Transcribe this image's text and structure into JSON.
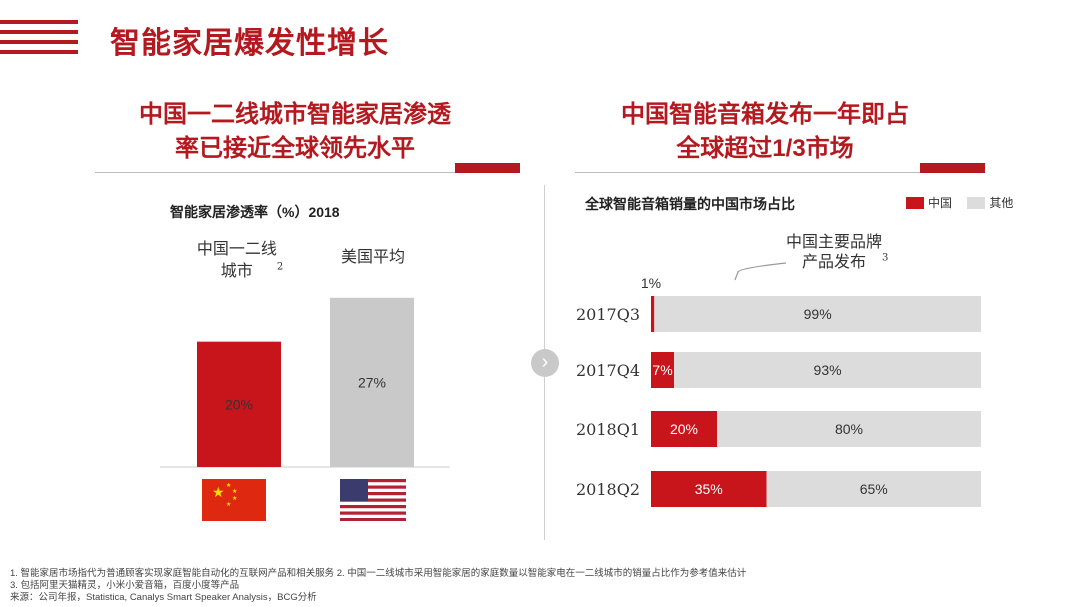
{
  "page": {
    "title": "智能家居爆发性增长"
  },
  "left_panel": {
    "heading_line1": "中国一二线城市智能家居渗透",
    "heading_line2": "率已接近全球领先水平",
    "flags": [
      {
        "name": "china-flag",
        "country": "中国"
      },
      {
        "name": "usa-flag",
        "country": "美国"
      }
    ]
  },
  "right_panel": {
    "heading_line1": "中国智能音箱发布一年即占",
    "heading_line2": "全球超过1/3市场",
    "annotation": "中国主要品牌产品发布",
    "annotation_sup": "3",
    "navigation_icon": "chevron-right-icon"
  },
  "chart_data": [
    {
      "type": "bar",
      "title": "智能家居渗透率（%）2018",
      "categories": [
        "中国一二线城市",
        "美国平均"
      ],
      "category_superscripts": [
        "2",
        ""
      ],
      "values": [
        20,
        27
      ],
      "value_labels": [
        "20%",
        "27%"
      ],
      "colors": [
        "#c8151b",
        "#c9c9c9"
      ],
      "ylim": [
        0,
        30
      ]
    },
    {
      "type": "bar",
      "orientation": "horizontal",
      "stacked": true,
      "title": "全球智能音箱销量的中国市场占比",
      "categories": [
        "2017Q3",
        "2017Q4",
        "2018Q1",
        "2018Q2"
      ],
      "series": [
        {
          "name": "中国",
          "color": "#c8151b",
          "values": [
            1,
            7,
            20,
            35
          ],
          "labels": [
            "1%",
            "7%",
            "20%",
            "35%"
          ]
        },
        {
          "name": "其他",
          "color": "#dcdcdc",
          "values": [
            99,
            93,
            80,
            65
          ],
          "labels": [
            "99%",
            "93%",
            "80%",
            "65%"
          ]
        }
      ],
      "xlim": [
        0,
        100
      ],
      "legend": "top-right"
    }
  ],
  "footnotes": {
    "line1": "1. 智能家居市场指代为普通顾客实现家庭智能自动化的互联网产品和相关服务   2. 中国一二线城市采用智能家居的家庭数量以智能家电在一二线城市的销量占比作为参考值来估计",
    "line2": "3. 包括阿里天猫精灵，小米小爱音箱，百度小度等产品",
    "line3": "来源：公司年报，Statistica, Canalys Smart Speaker Analysis，BCG分析"
  }
}
